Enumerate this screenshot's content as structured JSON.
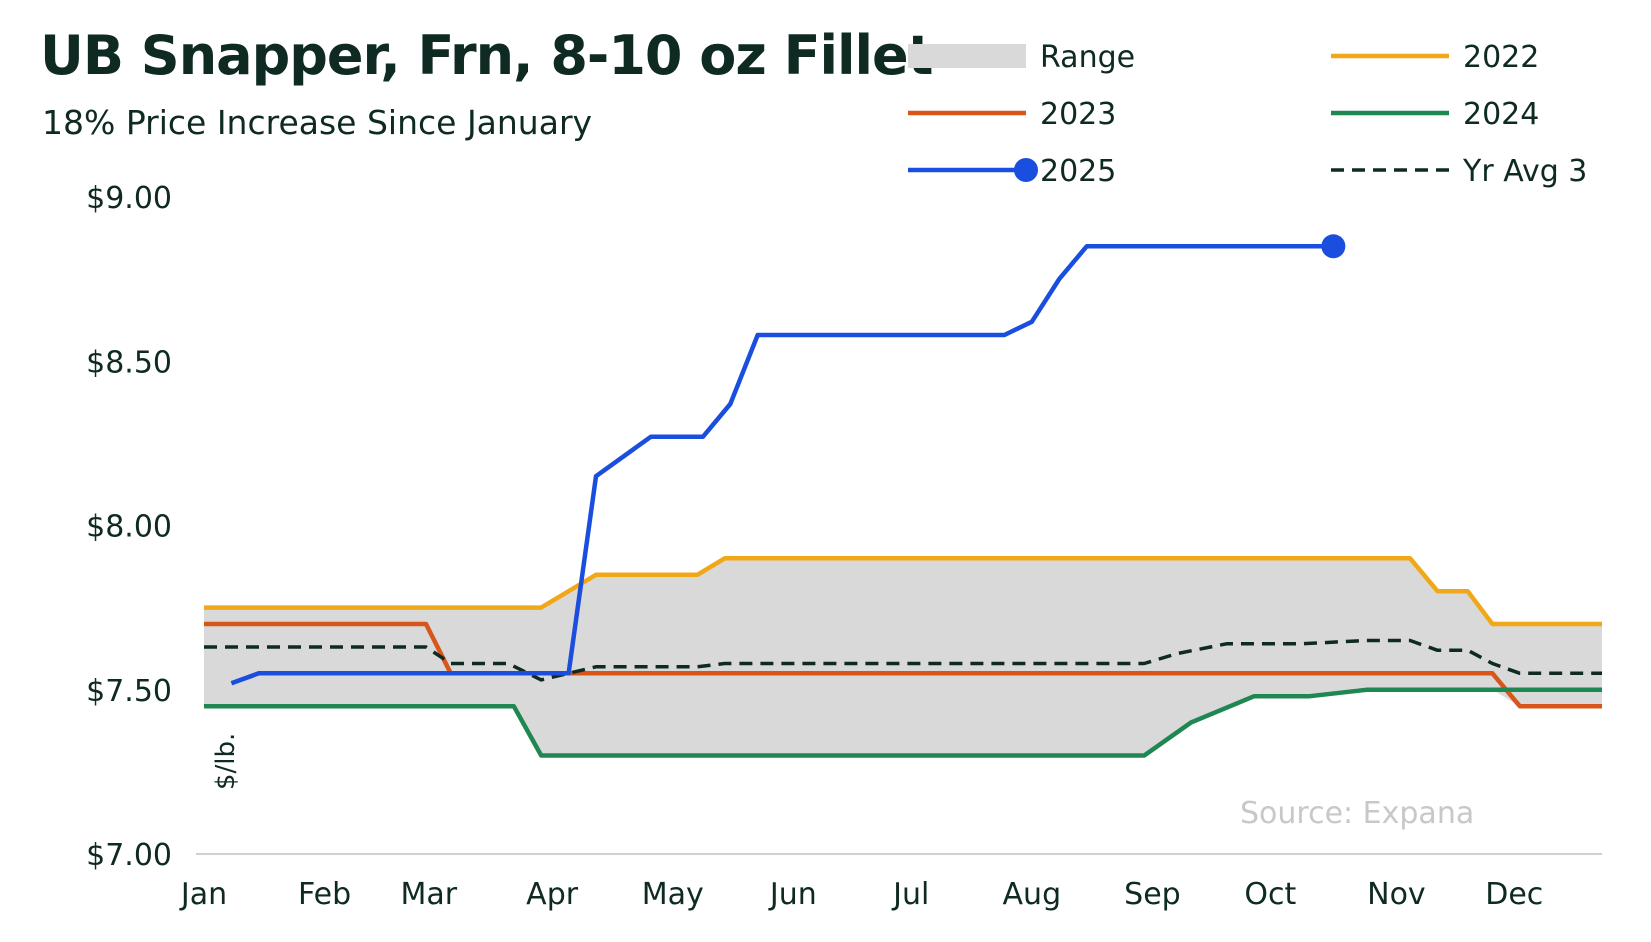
{
  "chart_data": {
    "type": "line",
    "title": "UB Snapper, Frn, 8-10 oz Fillet",
    "subtitle": "18% Price Increase Since January",
    "ylabel": "$/lb.",
    "source": "Source: Expana",
    "ylim": [
      7.0,
      9.0
    ],
    "xlim": [
      0,
      51
    ],
    "y_ticks": [
      {
        "value": 9.0,
        "label": "$9.00"
      },
      {
        "value": 8.5,
        "label": "$8.50"
      },
      {
        "value": 8.0,
        "label": "$8.00"
      },
      {
        "value": 7.5,
        "label": "$7.50"
      },
      {
        "value": 7.0,
        "label": "$7.00"
      }
    ],
    "x_ticks": [
      {
        "week": 0,
        "label": "Jan"
      },
      {
        "week": 4.4,
        "label": "Feb"
      },
      {
        "week": 8.2,
        "label": "Mar"
      },
      {
        "week": 12.7,
        "label": "Apr"
      },
      {
        "week": 17.1,
        "label": "May"
      },
      {
        "week": 21.5,
        "label": "Jun"
      },
      {
        "week": 25.8,
        "label": "Jul"
      },
      {
        "week": 30.2,
        "label": "Aug"
      },
      {
        "week": 34.6,
        "label": "Sep"
      },
      {
        "week": 38.9,
        "label": "Oct"
      },
      {
        "week": 43.5,
        "label": "Nov"
      },
      {
        "week": 47.8,
        "label": "Dec"
      }
    ],
    "grid": false,
    "legend": "top-right",
    "colors": {
      "range": "#d9d9d9",
      "y2022": "#f0a818",
      "y2023": "#d8561a",
      "y2024": "#1f8752",
      "y2025": "#1a4ede",
      "avg": "#0e2a22"
    },
    "series": [
      {
        "name": "2022",
        "key": "y2022",
        "style": "solid",
        "points": [
          [
            0,
            7.75
          ],
          [
            12.3,
            7.75
          ],
          [
            14.3,
            7.85
          ],
          [
            18,
            7.85
          ],
          [
            19,
            7.9
          ],
          [
            44,
            7.9
          ],
          [
            45,
            7.8
          ],
          [
            46.1,
            7.8
          ],
          [
            47,
            7.7
          ],
          [
            51,
            7.7
          ]
        ]
      },
      {
        "name": "2023",
        "key": "y2023",
        "style": "solid",
        "points": [
          [
            0,
            7.7
          ],
          [
            8.1,
            7.7
          ],
          [
            9,
            7.55
          ],
          [
            47,
            7.55
          ],
          [
            48,
            7.45
          ],
          [
            51,
            7.45
          ]
        ]
      },
      {
        "name": "2024",
        "key": "y2024",
        "style": "solid",
        "points": [
          [
            0,
            7.45
          ],
          [
            11.3,
            7.45
          ],
          [
            12.3,
            7.3
          ],
          [
            34.3,
            7.3
          ],
          [
            36,
            7.4
          ],
          [
            38.3,
            7.48
          ],
          [
            40.3,
            7.48
          ],
          [
            42.4,
            7.5
          ],
          [
            51,
            7.5
          ]
        ]
      },
      {
        "name": "2025",
        "key": "y2025",
        "style": "solid",
        "end_marker": true,
        "points": [
          [
            1,
            7.52
          ],
          [
            2,
            7.55
          ],
          [
            13.3,
            7.55
          ],
          [
            14.3,
            8.15
          ],
          [
            16.3,
            8.27
          ],
          [
            18.2,
            8.27
          ],
          [
            19.2,
            8.37
          ],
          [
            20.2,
            8.58
          ],
          [
            29.2,
            8.58
          ],
          [
            30.2,
            8.62
          ],
          [
            31.2,
            8.75
          ],
          [
            32.2,
            8.85
          ],
          [
            41.2,
            8.85
          ]
        ]
      },
      {
        "name": "Yr Avg 3",
        "key": "avg",
        "style": "dashed",
        "points": [
          [
            0,
            7.63
          ],
          [
            8.1,
            7.63
          ],
          [
            9,
            7.58
          ],
          [
            11.1,
            7.58
          ],
          [
            12.3,
            7.53
          ],
          [
            13.3,
            7.55
          ],
          [
            14.3,
            7.57
          ],
          [
            18,
            7.57
          ],
          [
            19,
            7.58
          ],
          [
            34.3,
            7.58
          ],
          [
            35.5,
            7.61
          ],
          [
            37.3,
            7.64
          ],
          [
            40,
            7.64
          ],
          [
            42.4,
            7.65
          ],
          [
            44,
            7.65
          ],
          [
            45,
            7.62
          ],
          [
            46.1,
            7.62
          ],
          [
            47,
            7.58
          ],
          [
            48,
            7.55
          ],
          [
            51,
            7.55
          ]
        ]
      }
    ],
    "legend_items": [
      {
        "label": "Range",
        "key": "range",
        "kind": "band"
      },
      {
        "label": "2022",
        "key": "y2022",
        "kind": "line"
      },
      {
        "label": "2023",
        "key": "y2023",
        "kind": "line"
      },
      {
        "label": "2024",
        "key": "y2024",
        "kind": "line"
      },
      {
        "label": "2025",
        "key": "y2025",
        "kind": "line-marker"
      },
      {
        "label": "Yr Avg 3",
        "key": "avg",
        "kind": "dashed"
      }
    ]
  }
}
